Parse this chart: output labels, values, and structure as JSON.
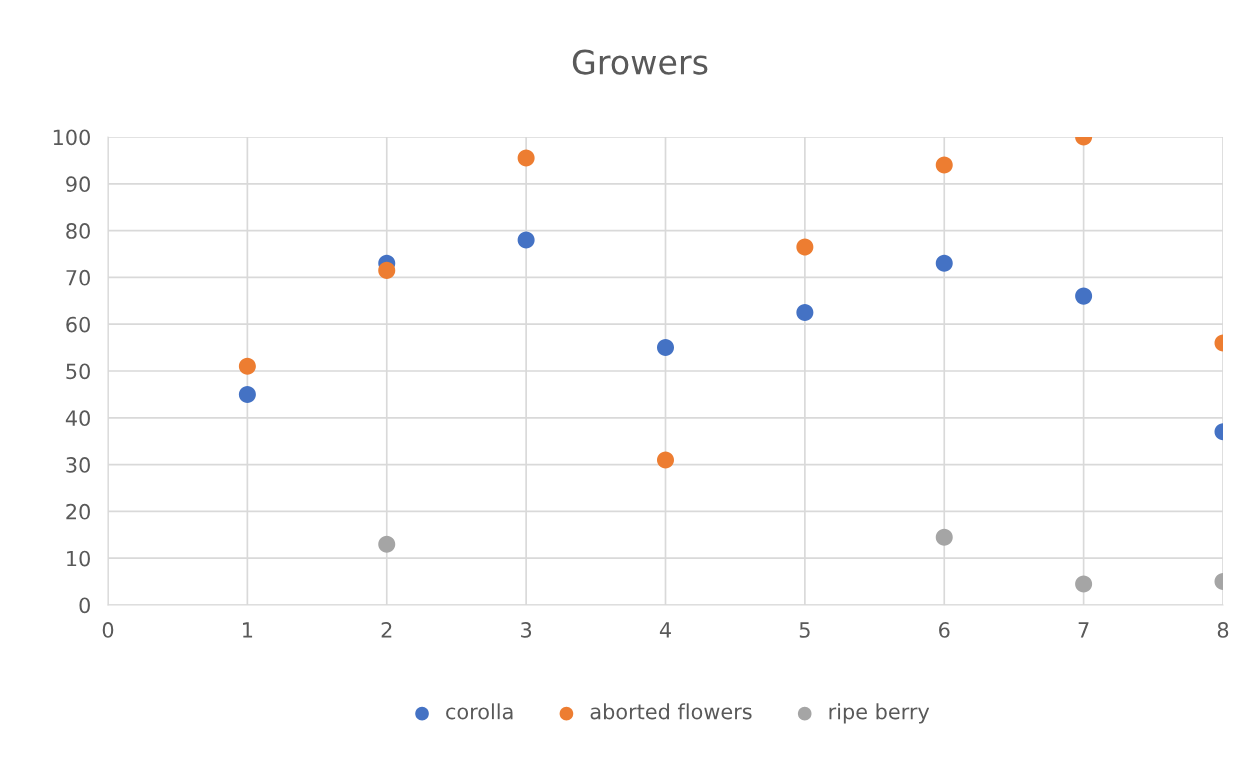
{
  "chart_data": {
    "type": "scatter",
    "title": "Growers",
    "x": [
      1,
      2,
      3,
      4,
      5,
      6,
      7,
      8
    ],
    "series": [
      {
        "name": "corolla",
        "color": "#4472c4",
        "values": [
          45,
          73,
          78,
          55,
          62.5,
          73,
          66,
          37
        ]
      },
      {
        "name": "aborted flowers",
        "color": "#ed7d31",
        "values": [
          51,
          71.5,
          95.5,
          31,
          76.5,
          94,
          100,
          56
        ]
      },
      {
        "name": "ripe berry",
        "color": "#a5a5a5",
        "values": [
          null,
          13,
          null,
          null,
          null,
          14.5,
          4.5,
          5
        ]
      }
    ],
    "xlim": [
      0,
      8
    ],
    "xticks": [
      0,
      1,
      2,
      3,
      4,
      5,
      6,
      7,
      8
    ],
    "ylim": [
      0,
      100
    ],
    "yticks": [
      0,
      10,
      20,
      30,
      40,
      50,
      60,
      70,
      80,
      90,
      100
    ],
    "grid": true,
    "legend": "bottom",
    "marker": "circle"
  }
}
